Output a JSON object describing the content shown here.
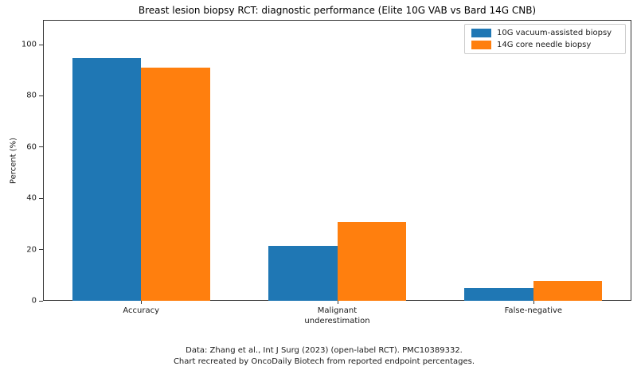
{
  "chart_data": {
    "type": "bar",
    "title": "Breast lesion biopsy RCT: diagnostic performance (Elite 10G VAB vs Bard 14G CNB)",
    "categories": [
      "Accuracy",
      "Malignant\nunderestimation",
      "False-negative"
    ],
    "series": [
      {
        "name": "10G vacuum-assisted biopsy",
        "color": "#1f77b4",
        "values": [
          94.7,
          21.4,
          5.0
        ]
      },
      {
        "name": "14G core needle biopsy",
        "color": "#ff7f0e",
        "values": [
          91.1,
          30.9,
          7.9
        ]
      }
    ],
    "xlabel": "",
    "ylabel": "Percent (%)",
    "ylim": [
      0,
      109
    ],
    "yticks": [
      0,
      20,
      40,
      60,
      80,
      100
    ],
    "grid": false,
    "legend_position": "upper right",
    "footnote_line1": "Data: Zhang et al., Int J Surg (2023) (open-label RCT). PMC10389332.",
    "footnote_line2": "Chart recreated by OncoDaily Biotech from reported endpoint percentages."
  }
}
